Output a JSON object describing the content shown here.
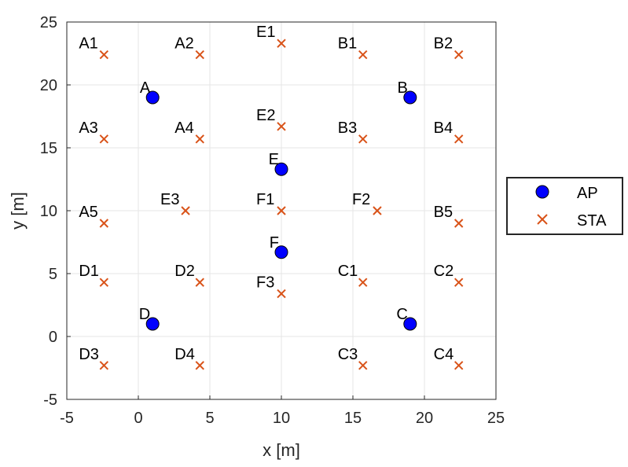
{
  "chart_data": {
    "type": "scatter",
    "xlabel": "x [m]",
    "ylabel": "y [m]",
    "xlim": [
      -5,
      25
    ],
    "ylim": [
      -5,
      25
    ],
    "xticks": [
      "-5",
      "0",
      "5",
      "10",
      "15",
      "20",
      "25"
    ],
    "yticks": [
      "-5",
      "0",
      "5",
      "10",
      "15",
      "20",
      "25"
    ],
    "grid": true,
    "legend_position": "outside-right",
    "series": [
      {
        "name": "AP",
        "marker": "circle",
        "color": "#0000FF",
        "points": [
          {
            "label": "A",
            "x": 1,
            "y": 19
          },
          {
            "label": "B",
            "x": 19,
            "y": 19
          },
          {
            "label": "E",
            "x": 10,
            "y": 13.3
          },
          {
            "label": "F",
            "x": 10,
            "y": 6.7
          },
          {
            "label": "D",
            "x": 1,
            "y": 1
          },
          {
            "label": "C",
            "x": 19,
            "y": 1
          }
        ]
      },
      {
        "name": "STA",
        "marker": "x",
        "color": "#D95319",
        "points": [
          {
            "label": "A1",
            "x": -2.4,
            "y": 22.4
          },
          {
            "label": "A2",
            "x": 4.3,
            "y": 22.4
          },
          {
            "label": "E1",
            "x": 10,
            "y": 23.3
          },
          {
            "label": "B1",
            "x": 15.7,
            "y": 22.4
          },
          {
            "label": "B2",
            "x": 22.4,
            "y": 22.4
          },
          {
            "label": "A3",
            "x": -2.4,
            "y": 15.7
          },
          {
            "label": "A4",
            "x": 4.3,
            "y": 15.7
          },
          {
            "label": "E2",
            "x": 10,
            "y": 16.7
          },
          {
            "label": "B3",
            "x": 15.7,
            "y": 15.7
          },
          {
            "label": "B4",
            "x": 22.4,
            "y": 15.7
          },
          {
            "label": "A5",
            "x": -2.4,
            "y": 9
          },
          {
            "label": "E3",
            "x": 3.3,
            "y": 10
          },
          {
            "label": "F1",
            "x": 10,
            "y": 10
          },
          {
            "label": "F2",
            "x": 16.7,
            "y": 10
          },
          {
            "label": "B5",
            "x": 22.4,
            "y": 9
          },
          {
            "label": "D1",
            "x": -2.4,
            "y": 4.3
          },
          {
            "label": "D2",
            "x": 4.3,
            "y": 4.3
          },
          {
            "label": "F3",
            "x": 10,
            "y": 3.4
          },
          {
            "label": "C1",
            "x": 15.7,
            "y": 4.3
          },
          {
            "label": "C2",
            "x": 22.4,
            "y": 4.3
          },
          {
            "label": "D3",
            "x": -2.4,
            "y": -2.3
          },
          {
            "label": "D4",
            "x": 4.3,
            "y": -2.3
          },
          {
            "label": "C3",
            "x": 15.7,
            "y": -2.3
          },
          {
            "label": "C4",
            "x": 22.4,
            "y": -2.3
          }
        ]
      }
    ]
  }
}
